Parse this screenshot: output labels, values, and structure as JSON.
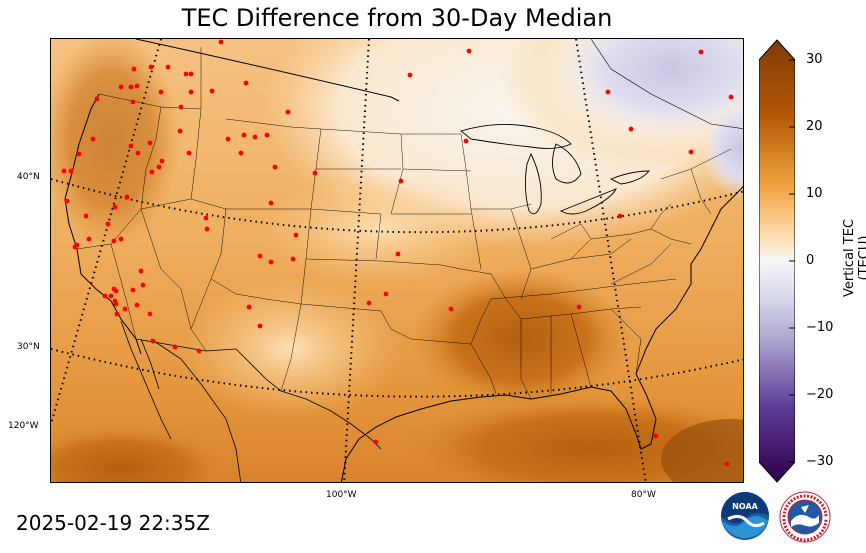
{
  "title": "TEC Difference from 30-Day Median",
  "timestamp": "2025-02-19 22:35Z",
  "colorbar": {
    "label": "Vertical TEC (TECU)",
    "ticks": [
      "30",
      "20",
      "10",
      "0",
      "−10",
      "−20",
      "−30"
    ],
    "range": [
      -30,
      30
    ],
    "colors": {
      "max": "#7f3b08",
      "high": "#d87a1c",
      "mid_high": "#f4b860",
      "zero": "#f7f7f7",
      "mid_low": "#b2abd2",
      "low": "#5e3c99",
      "min": "#2d004b"
    }
  },
  "grid_labels": {
    "lat_40": "40°N",
    "lat_30": "30°N",
    "lon_120": "120°W",
    "lon_100": "100°W",
    "lon_80": "80°W"
  },
  "station_color": "#ff0000",
  "logos": {
    "noaa": "NOAA",
    "nws": "NATIONAL WEATHER SERVICE"
  }
}
